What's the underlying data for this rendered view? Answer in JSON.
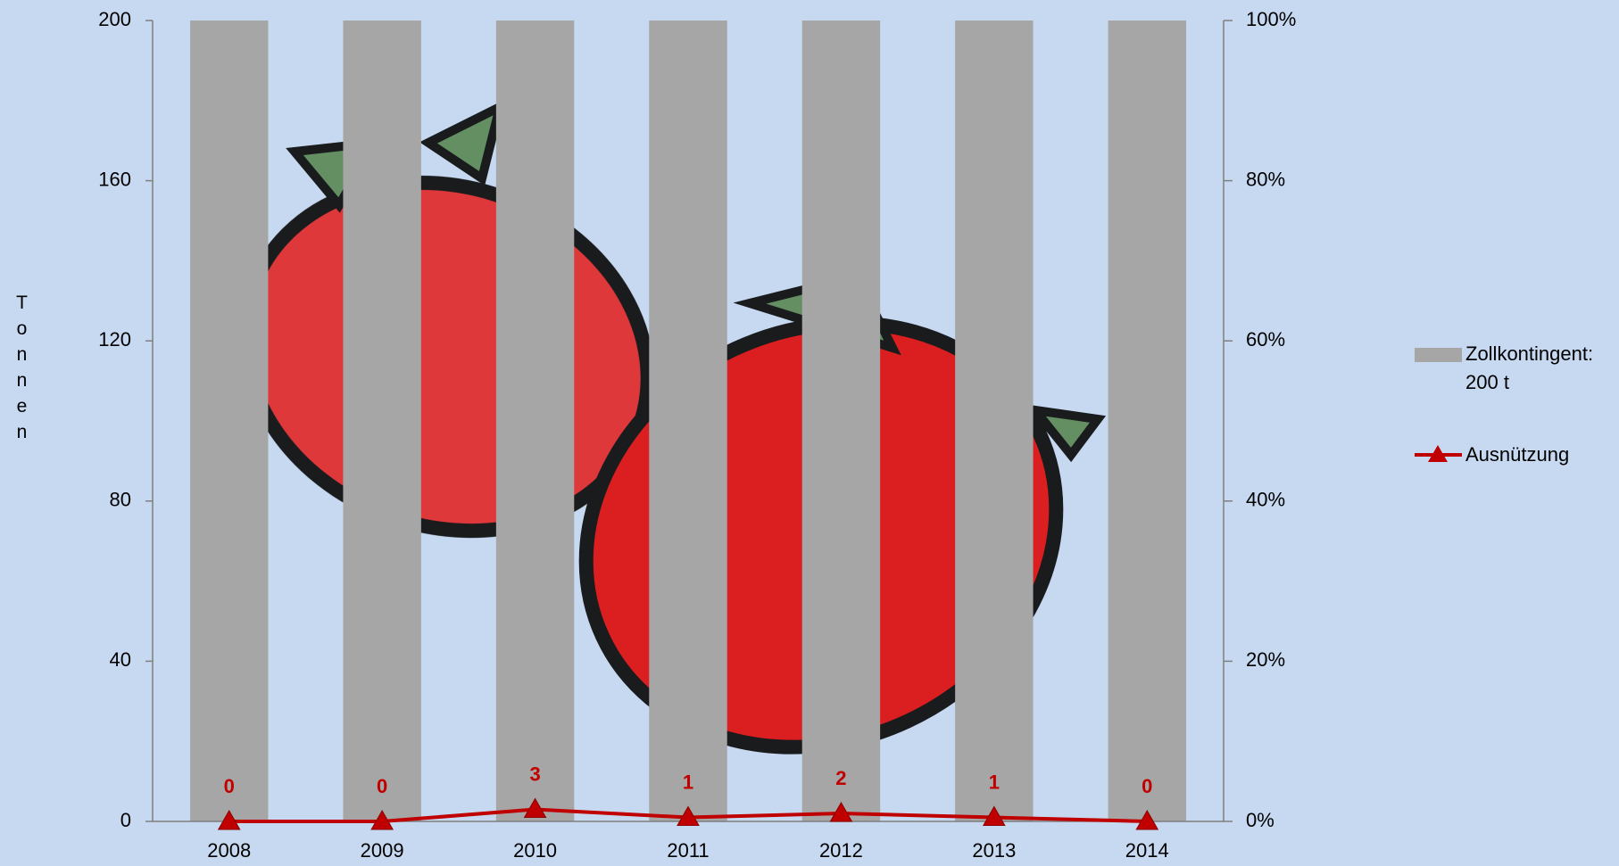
{
  "chart_data": {
    "type": "bar_line",
    "y_label": "Tonnen",
    "categories": [
      "2008",
      "2009",
      "2010",
      "2011",
      "2012",
      "2013",
      "2014"
    ],
    "series": [
      {
        "name": "Zollkontingent: 200 t",
        "type": "bar",
        "color": "#a6a6a6",
        "values": [
          200,
          200,
          200,
          200,
          200,
          200,
          200
        ]
      },
      {
        "name": "Ausnützung",
        "type": "line",
        "color": "#c00000",
        "values": [
          0,
          0,
          3,
          1,
          2,
          1,
          0
        ]
      }
    ],
    "ylim": [
      0,
      200
    ],
    "yticks": [
      0,
      40,
      80,
      120,
      160,
      200
    ],
    "y2lim": [
      0,
      100
    ],
    "y2ticks": [
      {
        "value": 0,
        "label": "0%"
      },
      {
        "value": 20,
        "label": "20%"
      },
      {
        "value": 40,
        "label": "40%"
      },
      {
        "value": 60,
        "label": "60%"
      },
      {
        "value": 80,
        "label": "80%"
      },
      {
        "value": 100,
        "label": "100%"
      }
    ],
    "grid": true
  }
}
